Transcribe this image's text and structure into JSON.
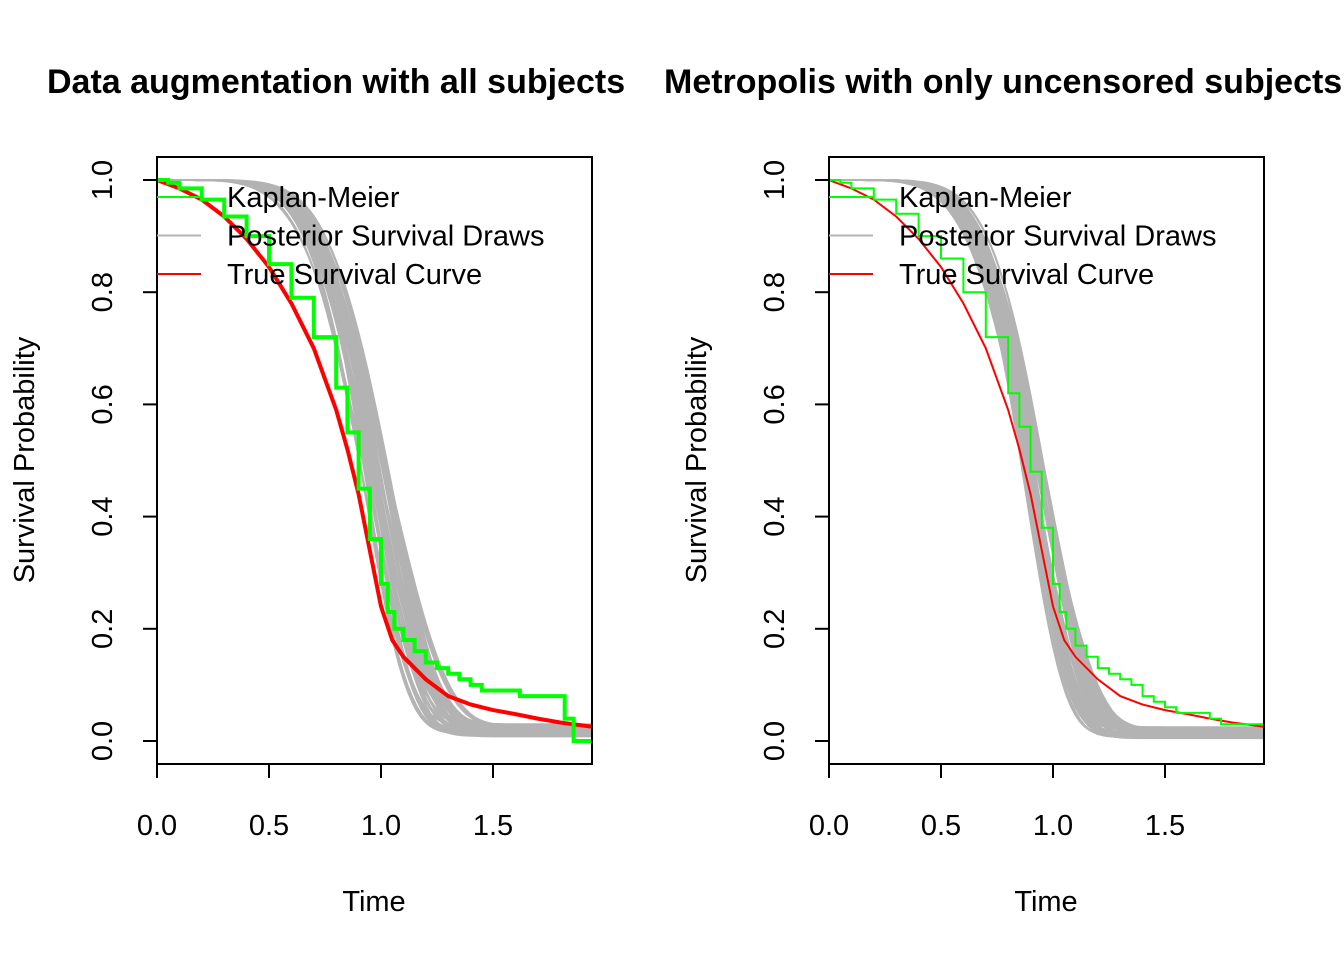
{
  "chart_data": [
    {
      "type": "line",
      "title": "Data augmentation with all subjects",
      "xlabel": "Time",
      "ylabel": "Survival Probability",
      "xlim": [
        0,
        1.95
      ],
      "ylim": [
        0,
        1.0
      ],
      "xticks": [
        "0.0",
        "0.5",
        "1.0",
        "1.5"
      ],
      "yticks": [
        "0.0",
        "0.2",
        "0.4",
        "0.6",
        "0.8",
        "1.0"
      ],
      "legend": {
        "placement": "top-left",
        "entries": [
          {
            "label": "Kaplan-Meier",
            "color": "#00ff00"
          },
          {
            "label": "Posterior Survival Draws",
            "color": "#b3b3b3"
          },
          {
            "label": "True Survival Curve",
            "color": "#ff0000"
          }
        ]
      },
      "posterior_draws": {
        "name": "Posterior Survival Draws",
        "color": "#b3b3b3",
        "count": 50,
        "t_center": 0.96,
        "t_center_spread": 0.06,
        "cure_fraction": 0.018,
        "cure_spread": 0.012
      },
      "series": [
        {
          "name": "True Survival Curve",
          "color": "#ff0000",
          "x": [
            0,
            0.1,
            0.2,
            0.3,
            0.4,
            0.5,
            0.6,
            0.7,
            0.8,
            0.85,
            0.9,
            0.95,
            1.0,
            1.05,
            1.1,
            1.2,
            1.3,
            1.4,
            1.5,
            1.6,
            1.7,
            1.8,
            1.95
          ],
          "y": [
            1.0,
            0.985,
            0.965,
            0.935,
            0.895,
            0.845,
            0.78,
            0.7,
            0.59,
            0.52,
            0.44,
            0.34,
            0.24,
            0.18,
            0.15,
            0.11,
            0.08,
            0.065,
            0.055,
            0.048,
            0.04,
            0.033,
            0.025
          ]
        },
        {
          "name": "Kaplan-Meier",
          "color": "#00ff00",
          "step": true,
          "x": [
            0,
            0.05,
            0.1,
            0.2,
            0.3,
            0.4,
            0.5,
            0.6,
            0.7,
            0.8,
            0.85,
            0.9,
            0.95,
            1.0,
            1.03,
            1.06,
            1.1,
            1.15,
            1.2,
            1.25,
            1.3,
            1.35,
            1.4,
            1.45,
            1.62,
            1.82,
            1.86,
            1.95
          ],
          "y": [
            1.0,
            0.995,
            0.985,
            0.965,
            0.935,
            0.9,
            0.85,
            0.79,
            0.72,
            0.63,
            0.55,
            0.45,
            0.36,
            0.28,
            0.23,
            0.2,
            0.18,
            0.16,
            0.14,
            0.13,
            0.12,
            0.11,
            0.1,
            0.09,
            0.08,
            0.04,
            0.0,
            0.0
          ]
        }
      ]
    },
    {
      "type": "line",
      "title": "Metropolis with only uncensored subjects",
      "xlabel": "Time",
      "ylabel": "Survival Probability",
      "xlim": [
        0,
        1.95
      ],
      "ylim": [
        0,
        1.0
      ],
      "xticks": [
        "0.0",
        "0.5",
        "1.0",
        "1.5"
      ],
      "yticks": [
        "0.0",
        "0.2",
        "0.4",
        "0.6",
        "0.8",
        "1.0"
      ],
      "legend": {
        "placement": "top-left",
        "entries": [
          {
            "label": "Kaplan-Meier",
            "color": "#00ff00"
          },
          {
            "label": "Posterior Survival Draws",
            "color": "#b3b3b3"
          },
          {
            "label": "True Survival Curve",
            "color": "#ff0000"
          }
        ]
      },
      "posterior_draws": {
        "name": "Posterior Survival Draws",
        "color": "#b3b3b3",
        "count": 50,
        "t_center": 0.9,
        "t_center_spread": 0.05,
        "cure_fraction": 0.015,
        "cure_spread": 0.01
      },
      "series": [
        {
          "name": "True Survival Curve",
          "color": "#ff0000",
          "x": [
            0,
            0.1,
            0.2,
            0.3,
            0.4,
            0.5,
            0.6,
            0.7,
            0.8,
            0.85,
            0.9,
            0.95,
            1.0,
            1.05,
            1.1,
            1.2,
            1.3,
            1.4,
            1.5,
            1.6,
            1.7,
            1.8,
            1.95
          ],
          "y": [
            1.0,
            0.985,
            0.965,
            0.935,
            0.895,
            0.845,
            0.78,
            0.7,
            0.59,
            0.52,
            0.44,
            0.34,
            0.24,
            0.18,
            0.15,
            0.11,
            0.08,
            0.065,
            0.055,
            0.048,
            0.04,
            0.033,
            0.025
          ]
        },
        {
          "name": "Kaplan-Meier",
          "color": "#00ff00",
          "step": true,
          "x": [
            0,
            0.05,
            0.1,
            0.2,
            0.3,
            0.4,
            0.5,
            0.6,
            0.7,
            0.8,
            0.85,
            0.9,
            0.95,
            1.0,
            1.03,
            1.06,
            1.1,
            1.15,
            1.2,
            1.25,
            1.3,
            1.35,
            1.4,
            1.45,
            1.5,
            1.55,
            1.6,
            1.7,
            1.75,
            1.95
          ],
          "y": [
            1.0,
            0.995,
            0.985,
            0.965,
            0.94,
            0.9,
            0.86,
            0.8,
            0.72,
            0.62,
            0.56,
            0.48,
            0.38,
            0.28,
            0.23,
            0.2,
            0.17,
            0.15,
            0.13,
            0.12,
            0.11,
            0.1,
            0.08,
            0.07,
            0.06,
            0.05,
            0.05,
            0.04,
            0.03,
            0.03
          ]
        }
      ]
    }
  ]
}
